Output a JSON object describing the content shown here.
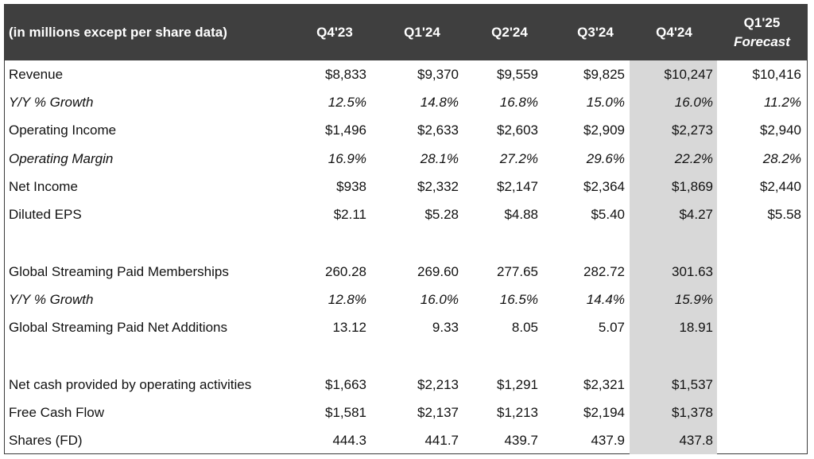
{
  "header": {
    "label": "(in millions except per share data)",
    "columns": [
      "Q4'23",
      "Q1'24",
      "Q2'24",
      "Q3'24",
      "Q4'24"
    ],
    "forecast_top": "Q1'25",
    "forecast_bottom": "Forecast"
  },
  "rows": [
    {
      "label": "Revenue",
      "values": [
        "$8,833",
        "$9,370",
        "$9,559",
        "$9,825",
        "$10,247",
        "$10,416"
      ]
    },
    {
      "label": "Y/Y % Growth",
      "values": [
        "12.5%",
        "14.8%",
        "16.8%",
        "15.0%",
        "16.0%",
        "11.2%"
      ]
    },
    {
      "label": "Operating Income",
      "values": [
        "$1,496",
        "$2,633",
        "$2,603",
        "$2,909",
        "$2,273",
        "$2,940"
      ]
    },
    {
      "label": "Operating Margin",
      "values": [
        "16.9%",
        "28.1%",
        "27.2%",
        "29.6%",
        "22.2%",
        "28.2%"
      ]
    },
    {
      "label": "Net Income",
      "values": [
        "$938",
        "$2,332",
        "$2,147",
        "$2,364",
        "$1,869",
        "$2,440"
      ]
    },
    {
      "label": "Diluted EPS",
      "values": [
        "$2.11",
        "$5.28",
        "$4.88",
        "$5.40",
        "$4.27",
        "$5.58"
      ]
    },
    {
      "label": "Global Streaming Paid Memberships",
      "values": [
        "260.28",
        "269.60",
        "277.65",
        "282.72",
        "301.63",
        ""
      ]
    },
    {
      "label": "Y/Y % Growth",
      "values": [
        "12.8%",
        "16.0%",
        "16.5%",
        "14.4%",
        "15.9%",
        ""
      ]
    },
    {
      "label": "Global Streaming Paid Net Additions",
      "values": [
        "13.12",
        "9.33",
        "8.05",
        "5.07",
        "18.91",
        ""
      ]
    },
    {
      "label": "Net cash provided by operating activities",
      "values": [
        "$1,663",
        "$2,213",
        "$1,291",
        "$2,321",
        "$1,537",
        ""
      ]
    },
    {
      "label": "Free Cash Flow",
      "values": [
        "$1,581",
        "$2,137",
        "$1,213",
        "$2,194",
        "$1,378",
        ""
      ]
    },
    {
      "label": "Shares (FD)",
      "values": [
        "444.3",
        "441.7",
        "439.7",
        "437.9",
        "437.8",
        ""
      ]
    }
  ]
}
